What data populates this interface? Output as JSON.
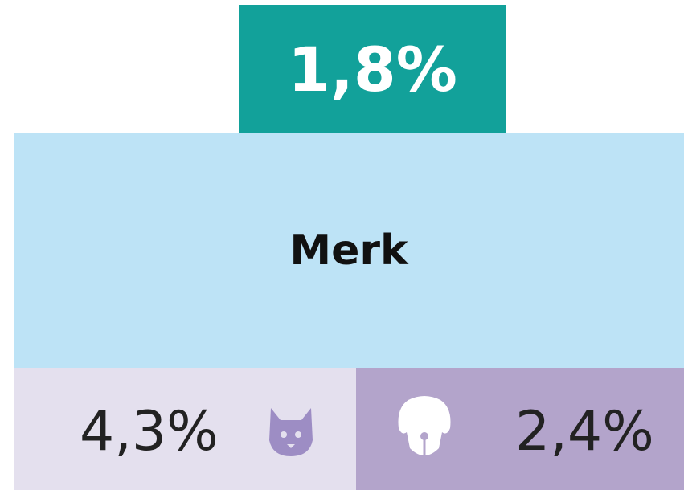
{
  "badge": "1,8%",
  "label": "Merk",
  "cat": "4,3%",
  "dog": "2,4%"
}
